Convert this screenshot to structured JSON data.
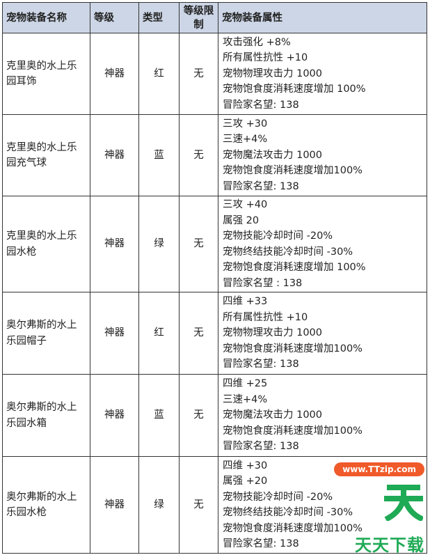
{
  "headers": [
    "宠物装备名称",
    "等级",
    "类型",
    "等级限制",
    "宠物装备属性"
  ],
  "rows": [
    {
      "name": "克里奥的水上乐园耳饰",
      "grade": "神器",
      "type": "红",
      "level_limit": "无",
      "attrs": [
        "攻击强化 +8%",
        "所有属性抗性 +10",
        "宠物物理攻击力 1000",
        "宠物饱食度消耗速度增加 100%",
        "冒险家名望: 138"
      ]
    },
    {
      "name": "克里奥的水上乐园充气球",
      "grade": "神器",
      "type": "蓝",
      "level_limit": "无",
      "attrs": [
        "三攻 +30",
        "三速+4%",
        "宠物魔法攻击力 1000",
        "宠物饱食度消耗速度增加100%",
        "冒险家名望: 138"
      ]
    },
    {
      "name": "克里奥的水上乐园水枪",
      "grade": "神器",
      "type": "绿",
      "level_limit": "无",
      "attrs": [
        "三攻 +40",
        "属强 20",
        "宠物技能冷却时间 -20%",
        "宠物终结技能冷却时间 -30%",
        "宠物饱食度消耗速度增加 100%",
        "冒险家名望 : 138"
      ]
    },
    {
      "name": "奥尔弗斯的水上乐园帽子",
      "grade": "神器",
      "type": "红",
      "level_limit": "无",
      "attrs": [
        "四维 +33",
        "所有属性抗性 +10",
        "宠物物理攻击力 1000",
        "宠物饱食度消耗速度增加100%",
        "冒险家名望: 138"
      ]
    },
    {
      "name": "奥尔弗斯的水上乐园水箱",
      "grade": "神器",
      "type": "蓝",
      "level_limit": "无",
      "attrs": [
        "四维 +25",
        "三速+4%",
        "宠物魔法攻击力 1000",
        "宠物饱食度消耗速度增加100%",
        "冒险家名望: 138"
      ]
    },
    {
      "name": "奥尔弗斯的水上乐园水枪",
      "grade": "神器",
      "type": "绿",
      "level_limit": "无",
      "attrs": [
        "四维 +30",
        "属强 +20",
        "宠物技能冷却时间 -20%",
        "宠物终结技能冷却时间 -30%",
        "宠物饱食度消耗速度增加100%",
        "冒险家名望: 138"
      ]
    }
  ],
  "watermark": {
    "big": "天",
    "url": "www.TTzip.com",
    "brand": "天天下载"
  },
  "colors": {
    "header_bg": "#cdd6e6",
    "watermark_green": "#1faa55",
    "watermark_orange": "#f05a2a"
  }
}
